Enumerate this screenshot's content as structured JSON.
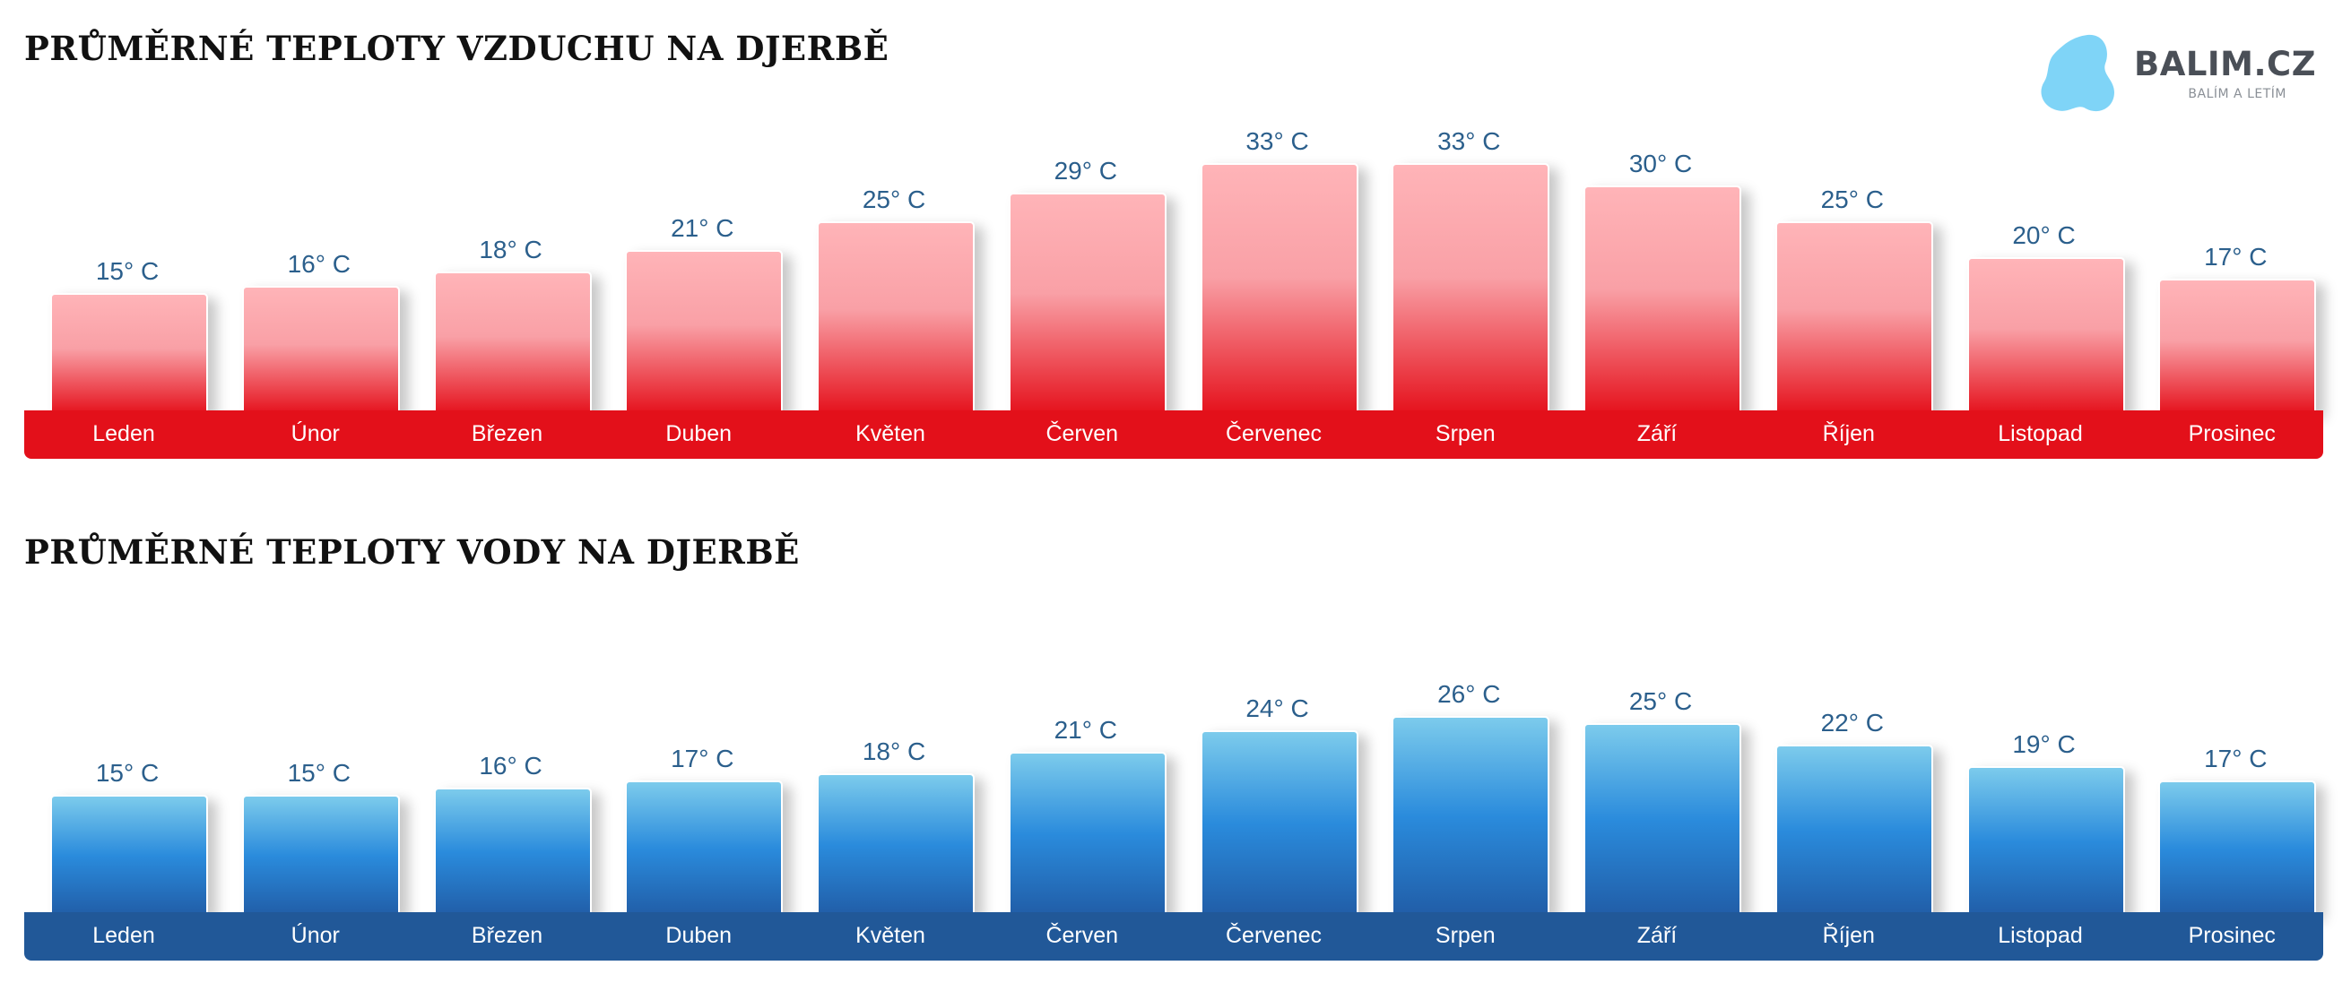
{
  "brand": {
    "name": "BALIM.CZ",
    "tagline": "BALÍM A LETÍM",
    "color": "#7fd4f7"
  },
  "chart_data": [
    {
      "type": "bar",
      "title": "PRŮMĚRNÉ TEPLOTY VZDUCHU NA DJERBĚ",
      "categories": [
        "Leden",
        "Únor",
        "Březen",
        "Duben",
        "Květen",
        "Červen",
        "Červenec",
        "Srpen",
        "Září",
        "Říjen",
        "Listopad",
        "Prosinec"
      ],
      "values": [
        15,
        16,
        18,
        21,
        25,
        29,
        33,
        33,
        30,
        25,
        20,
        17
      ],
      "value_labels": [
        "15° C",
        "16° C",
        "18° C",
        "21° C",
        "25° C",
        "29° C",
        "33° C",
        "33° C",
        "30° C",
        "25° C",
        "20° C",
        "17° C"
      ],
      "bar_color_top": "#ffb4b8",
      "bar_color_bottom": "#e5111c",
      "band_color": "#e3101a",
      "ylim": [
        0,
        36
      ],
      "grid": false,
      "legend": "none"
    },
    {
      "type": "bar",
      "title": "PRŮMĚRNÉ TEPLOTY VODY NA DJERBĚ",
      "categories": [
        "Leden",
        "Únor",
        "Březen",
        "Duben",
        "Květen",
        "Červen",
        "Červenec",
        "Srpen",
        "Září",
        "Říjen",
        "Listopad",
        "Prosinec"
      ],
      "values": [
        15,
        15,
        16,
        17,
        18,
        21,
        24,
        26,
        25,
        22,
        19,
        17
      ],
      "value_labels": [
        "15° C",
        "15° C",
        "16° C",
        "17° C",
        "18° C",
        "21° C",
        "24° C",
        "26° C",
        "25° C",
        "22° C",
        "19° C",
        "17° C"
      ],
      "bar_color_top": "#7ccbec",
      "bar_color_bottom": "#215da7",
      "band_color": "#215898",
      "ylim": [
        0,
        36
      ],
      "grid": false,
      "legend": "none"
    }
  ]
}
